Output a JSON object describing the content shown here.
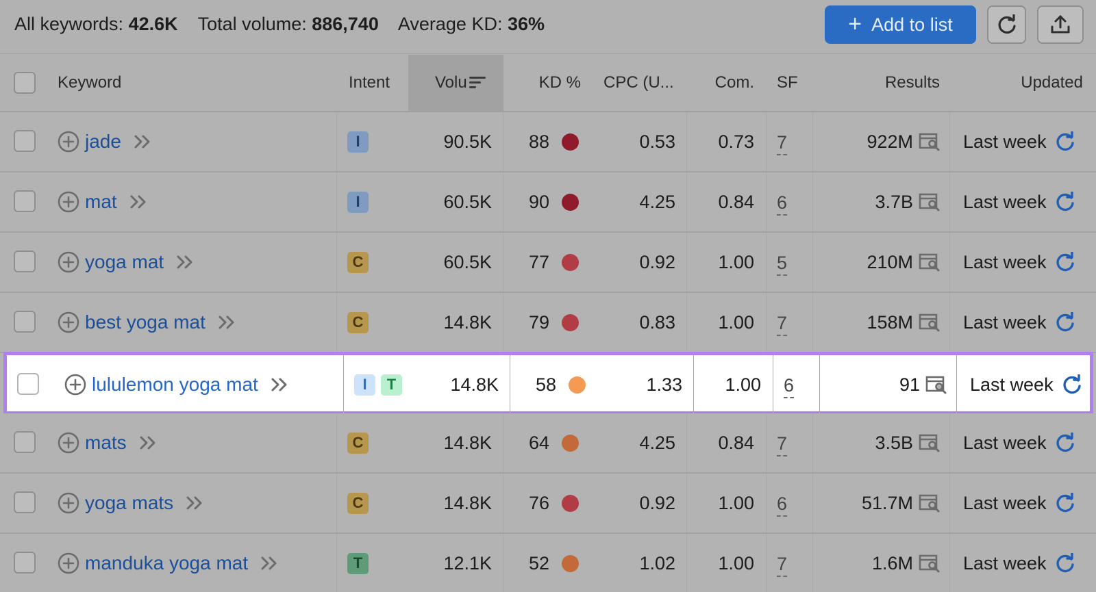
{
  "summary": {
    "all_keywords_label": "All keywords:",
    "all_keywords_value": "42.6K",
    "total_volume_label": "Total volume:",
    "total_volume_value": "886,740",
    "avg_kd_label": "Average KD:",
    "avg_kd_value": "36%"
  },
  "toolbar": {
    "add_to_list_label": "Add to list",
    "add_icon": "plus-icon",
    "refresh_icon": "refresh-icon",
    "export_icon": "export-icon"
  },
  "columns": {
    "keyword": "Keyword",
    "intent": "Intent",
    "volume": "Volu",
    "kd": "KD %",
    "cpc": "CPC (U...",
    "com": "Com.",
    "sf": "SF",
    "results": "Results",
    "updated": "Updated"
  },
  "colors": {
    "accent": "#2a6bc4",
    "highlight_border": "#b07ef0",
    "kd_very_hard": "#8f1a2c",
    "kd_hard": "#b23c44",
    "kd_difficult": "#c26a3a",
    "kd_difficult_bright": "#f49a52"
  },
  "rows": [
    {
      "keyword": "jade",
      "intents": [
        "I"
      ],
      "volume": "90.5K",
      "kd": "88",
      "kd_color": "#8f1a2c",
      "cpc": "0.53",
      "com": "0.73",
      "sf": "7",
      "results": "922M",
      "updated": "Last week",
      "highlight": false
    },
    {
      "keyword": "mat",
      "intents": [
        "I"
      ],
      "volume": "60.5K",
      "kd": "90",
      "kd_color": "#8f1a2c",
      "cpc": "4.25",
      "com": "0.84",
      "sf": "6",
      "results": "3.7B",
      "updated": "Last week",
      "highlight": false
    },
    {
      "keyword": "yoga mat",
      "intents": [
        "C"
      ],
      "volume": "60.5K",
      "kd": "77",
      "kd_color": "#b23c44",
      "cpc": "0.92",
      "com": "1.00",
      "sf": "5",
      "results": "210M",
      "updated": "Last week",
      "highlight": false
    },
    {
      "keyword": "best yoga mat",
      "intents": [
        "C"
      ],
      "volume": "14.8K",
      "kd": "79",
      "kd_color": "#b23c44",
      "cpc": "0.83",
      "com": "1.00",
      "sf": "7",
      "results": "158M",
      "updated": "Last week",
      "highlight": false
    },
    {
      "keyword": "lululemon yoga mat",
      "intents": [
        "I",
        "T"
      ],
      "volume": "14.8K",
      "kd": "58",
      "kd_color": "#f49a52",
      "cpc": "1.33",
      "com": "1.00",
      "sf": "6",
      "results": "91",
      "updated": "Last week",
      "highlight": true
    },
    {
      "keyword": "mats",
      "intents": [
        "C"
      ],
      "volume": "14.8K",
      "kd": "64",
      "kd_color": "#c26a3a",
      "cpc": "4.25",
      "com": "0.84",
      "sf": "7",
      "results": "3.5B",
      "updated": "Last week",
      "highlight": false
    },
    {
      "keyword": "yoga mats",
      "intents": [
        "C"
      ],
      "volume": "14.8K",
      "kd": "76",
      "kd_color": "#b23c44",
      "cpc": "0.92",
      "com": "1.00",
      "sf": "6",
      "results": "51.7M",
      "updated": "Last week",
      "highlight": false
    },
    {
      "keyword": "manduka yoga mat",
      "intents": [
        "T"
      ],
      "volume": "12.1K",
      "kd": "52",
      "kd_color": "#c26a3a",
      "cpc": "1.02",
      "com": "1.00",
      "sf": "7",
      "results": "1.6M",
      "updated": "Last week",
      "highlight": false
    }
  ]
}
